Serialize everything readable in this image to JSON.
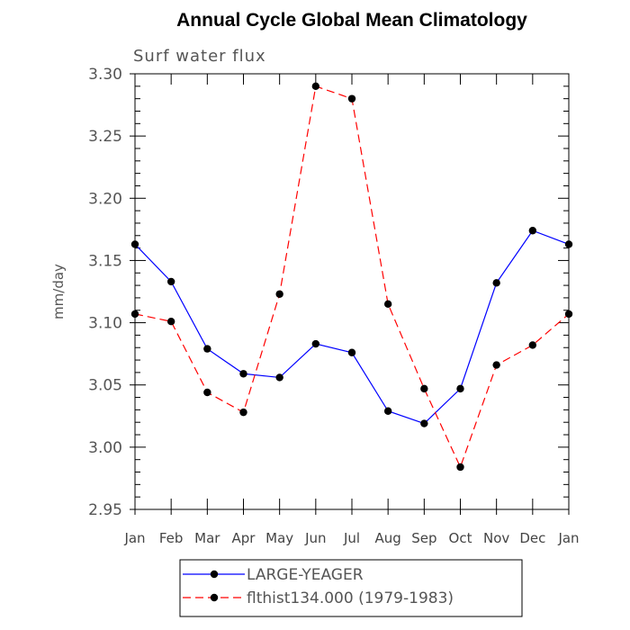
{
  "chart_data": {
    "type": "line",
    "title": "Annual Cycle Global Mean Climatology",
    "subtitle": "Surf water flux",
    "ylabel": "mm/day",
    "xlabel": "",
    "categories": [
      "Jan",
      "Feb",
      "Mar",
      "Apr",
      "May",
      "Jun",
      "Jul",
      "Aug",
      "Sep",
      "Oct",
      "Nov",
      "Dec",
      "Jan"
    ],
    "ylim": [
      2.95,
      3.3
    ],
    "yticks": [
      "2.95",
      "3.00",
      "3.05",
      "3.10",
      "3.15",
      "3.20",
      "3.25",
      "3.30"
    ],
    "ytick_values": [
      2.95,
      3.0,
      3.05,
      3.1,
      3.15,
      3.2,
      3.25,
      3.3
    ],
    "grid": false,
    "legend_position": "bottom",
    "series": [
      {
        "name": "LARGE-YEAGER",
        "color": "#0000ff",
        "dash": "solid",
        "values": [
          3.163,
          3.133,
          3.079,
          3.059,
          3.056,
          3.083,
          3.076,
          3.029,
          3.019,
          3.047,
          3.132,
          3.174,
          3.163
        ]
      },
      {
        "name": "flthist134.000 (1979-1983)",
        "color": "#ff0000",
        "dash": "dashed",
        "values": [
          3.107,
          3.101,
          3.044,
          3.028,
          3.123,
          3.29,
          3.28,
          3.115,
          3.047,
          2.984,
          3.066,
          3.082,
          3.107
        ]
      }
    ]
  }
}
